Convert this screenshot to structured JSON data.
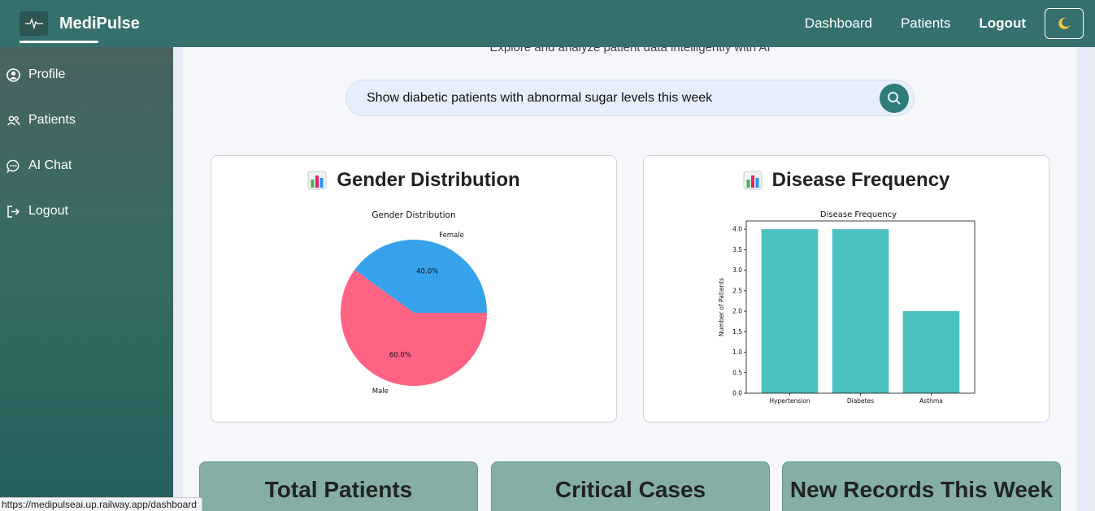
{
  "navbar": {
    "brand": "MediPulse",
    "links": [
      "Dashboard",
      "Patients",
      "Logout"
    ],
    "theme_icon": "moon-icon"
  },
  "sidebar": {
    "items": [
      {
        "label": "Profile",
        "icon": "user-circle-icon"
      },
      {
        "label": "Patients",
        "icon": "users-icon"
      },
      {
        "label": "AI Chat",
        "icon": "chat-icon"
      },
      {
        "label": "Logout",
        "icon": "logout-icon"
      }
    ]
  },
  "main": {
    "subtitle": "Explore and analyze patient data intelligently with AI",
    "search": {
      "value": "Show diabetic patients with abnormal sugar levels this week"
    },
    "cards": [
      {
        "title": "Gender Distribution",
        "icon": "bar-chart-icon"
      },
      {
        "title": "Disease Frequency",
        "icon": "bar-chart-icon"
      }
    ],
    "stats": [
      {
        "title": "Total Patients"
      },
      {
        "title": "Critical Cases"
      },
      {
        "title": "New Records This Week"
      }
    ]
  },
  "status_url": "https://medipulseai.up.railway.app/dashboard",
  "colors": {
    "female": "#36a2eb",
    "male": "#ff6384",
    "bar": "#4bc0c0",
    "accent": "#35706c"
  },
  "chart_data": [
    {
      "type": "pie",
      "title": "Gender Distribution",
      "labels": [
        "Female",
        "Male"
      ],
      "values": [
        40.0,
        60.0
      ],
      "value_labels": [
        "40.0%",
        "60.0%"
      ]
    },
    {
      "type": "bar",
      "title": "Disease Frequency",
      "categories": [
        "Hypertension",
        "Diabetes",
        "Asthma"
      ],
      "values": [
        4,
        4,
        2
      ],
      "ylabel": "Number of Patients",
      "ylim": [
        0,
        4.2
      ],
      "yticks": [
        "0.0",
        "0.5",
        "1.0",
        "1.5",
        "2.0",
        "2.5",
        "3.0",
        "3.5",
        "4.0"
      ]
    }
  ]
}
